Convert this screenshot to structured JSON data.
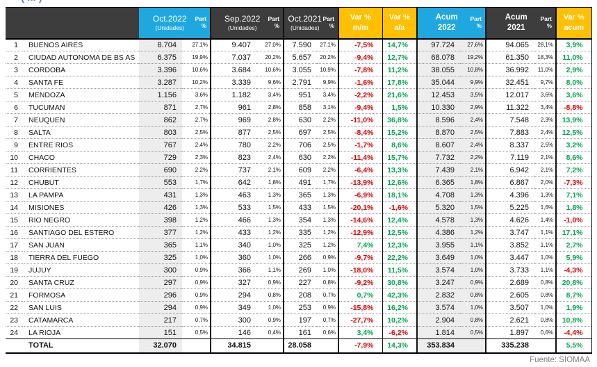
{
  "clipped_title": "( ... )",
  "source_note": "Fuente: SIOMAA",
  "colors": {
    "header_dark": "#3d3d3d",
    "header_cyan": "#1fa8e0",
    "header_amber": "#ffc000",
    "negative_red": "#e00000",
    "positive_green": "#00a651",
    "shaded_column_gray": "#ededed"
  },
  "header": {
    "oct2022": {
      "l1": "Oct.2022",
      "l2": "(Unidades)"
    },
    "sep2022": {
      "l1": "Sep.2022",
      "l2": "(Unidades)"
    },
    "oct2021": {
      "l1": "Oct.2021",
      "l2": "(Unidades)"
    },
    "part": {
      "l1": "Part",
      "l2": "%"
    },
    "var_mm": {
      "l1": "Var %",
      "l2": "m/m"
    },
    "var_aa": {
      "l1": "Var %",
      "l2": "a/a"
    },
    "acum2022": {
      "l1": "Acum",
      "l2": "2022"
    },
    "acum2021": {
      "l1": "Acum",
      "l2": "2021"
    },
    "var_acum": {
      "l1": "Var %",
      "l2": "acum"
    }
  },
  "chart_data": {
    "type": "table",
    "columns": [
      "#",
      "Provincia",
      "Oct.2022 (Unidades)",
      "Part %",
      "Sep.2022 (Unidades)",
      "Part %",
      "Oct.2021 (Unidades)",
      "Part %",
      "Var % m/m",
      "Var % a/a",
      "Acum 2022",
      "Part %",
      "Acum 2021",
      "Part %",
      "Var % acum"
    ],
    "rows": [
      [
        "1",
        "BUENOS AIRES",
        "8.704",
        "27,1%",
        "9.407",
        "27,0%",
        "7.590",
        "27,1%",
        "-7,5%",
        "14,7%",
        "97.724",
        "27,6%",
        "94.065",
        "28,1%",
        "3,9%"
      ],
      [
        "2",
        "CIUDAD AUTONOMA DE BS AS",
        "6.375",
        "19,9%",
        "7.037",
        "20,2%",
        "5.657",
        "20,2%",
        "-9,4%",
        "12,7%",
        "68.078",
        "19,2%",
        "61.350",
        "18,3%",
        "11,0%"
      ],
      [
        "3",
        "CORDOBA",
        "3.396",
        "10,6%",
        "3.684",
        "10,6%",
        "3.055",
        "10,9%",
        "-7,8%",
        "11,2%",
        "38.055",
        "10,8%",
        "36.992",
        "11,0%",
        "2,9%"
      ],
      [
        "4",
        "SANTA FE",
        "3.287",
        "10,2%",
        "3.339",
        "9,6%",
        "2.791",
        "9,9%",
        "-1,6%",
        "17,8%",
        "35.044",
        "9,9%",
        "32.451",
        "9,7%",
        "8,0%"
      ],
      [
        "5",
        "MENDOZA",
        "1.156",
        "3,6%",
        "1.182",
        "3,4%",
        "951",
        "3,4%",
        "-2,2%",
        "21,6%",
        "12.453",
        "3,5%",
        "12.017",
        "3,6%",
        "3,6%"
      ],
      [
        "6",
        "TUCUMAN",
        "871",
        "2,7%",
        "961",
        "2,8%",
        "858",
        "3,1%",
        "-9,4%",
        "1,5%",
        "10.330",
        "2,9%",
        "11.322",
        "3,4%",
        "-8,8%"
      ],
      [
        "7",
        "NEUQUEN",
        "862",
        "2,7%",
        "969",
        "2,8%",
        "630",
        "2,2%",
        "-11,0%",
        "36,8%",
        "8.596",
        "2,4%",
        "7.548",
        "2,3%",
        "13,9%"
      ],
      [
        "8",
        "SALTA",
        "803",
        "2,5%",
        "877",
        "2,5%",
        "697",
        "2,5%",
        "-8,4%",
        "15,2%",
        "8.870",
        "2,5%",
        "7.883",
        "2,4%",
        "12,5%"
      ],
      [
        "9",
        "ENTRE RIOS",
        "767",
        "2,4%",
        "780",
        "2,2%",
        "706",
        "2,5%",
        "-1,7%",
        "8,6%",
        "8.607",
        "2,4%",
        "8.337",
        "2,5%",
        "3,2%"
      ],
      [
        "10",
        "CHACO",
        "729",
        "2,3%",
        "823",
        "2,4%",
        "630",
        "2,2%",
        "-11,4%",
        "15,7%",
        "7.732",
        "2,2%",
        "7.119",
        "2,1%",
        "8,6%"
      ],
      [
        "11",
        "CORRIENTES",
        "690",
        "2,2%",
        "737",
        "2,1%",
        "609",
        "2,2%",
        "-6,4%",
        "13,3%",
        "7.439",
        "2,1%",
        "6.942",
        "2,1%",
        "7,2%"
      ],
      [
        "12",
        "CHUBUT",
        "553",
        "1,7%",
        "642",
        "1,8%",
        "491",
        "1,7%",
        "-13,9%",
        "12,6%",
        "6.365",
        "1,8%",
        "6.867",
        "2,0%",
        "-7,3%"
      ],
      [
        "13",
        "LA PAMPA",
        "431",
        "1,3%",
        "463",
        "1,3%",
        "365",
        "1,3%",
        "-6,9%",
        "18,1%",
        "4.708",
        "1,3%",
        "4.396",
        "1,3%",
        "7,1%"
      ],
      [
        "14",
        "MISIONES",
        "426",
        "1,3%",
        "533",
        "1,5%",
        "433",
        "1,5%",
        "-20,1%",
        "-1,6%",
        "5.320",
        "1,5%",
        "5.225",
        "1,6%",
        "1,8%"
      ],
      [
        "15",
        "RIO NEGRO",
        "398",
        "1,2%",
        "466",
        "1,3%",
        "354",
        "1,3%",
        "-14,6%",
        "12,4%",
        "4.578",
        "1,3%",
        "4.626",
        "1,4%",
        "-1,0%"
      ],
      [
        "16",
        "SANTIAGO DEL ESTERO",
        "377",
        "1,2%",
        "433",
        "1,2%",
        "335",
        "1,2%",
        "-12,9%",
        "12,5%",
        "4.386",
        "1,2%",
        "3.747",
        "1,1%",
        "17,1%"
      ],
      [
        "17",
        "SAN JUAN",
        "365",
        "1,1%",
        "340",
        "1,0%",
        "325",
        "1,2%",
        "7,4%",
        "12,3%",
        "3.955",
        "1,1%",
        "3.852",
        "1,1%",
        "2,7%"
      ],
      [
        "18",
        "TIERRA DEL FUEGO",
        "325",
        "1,0%",
        "360",
        "1,0%",
        "266",
        "0,9%",
        "-9,7%",
        "22,2%",
        "3.649",
        "1,0%",
        "3.447",
        "1,0%",
        "5,9%"
      ],
      [
        "19",
        "JUJUY",
        "300",
        "0,9%",
        "366",
        "1,1%",
        "269",
        "1,0%",
        "-18,0%",
        "11,5%",
        "3.574",
        "1,0%",
        "3.733",
        "1,1%",
        "-4,3%"
      ],
      [
        "20",
        "SANTA CRUZ",
        "297",
        "0,9%",
        "327",
        "0,9%",
        "227",
        "0,8%",
        "-9,2%",
        "30,8%",
        "3.247",
        "0,9%",
        "2.689",
        "0,8%",
        "20,8%"
      ],
      [
        "21",
        "FORMOSA",
        "296",
        "0,9%",
        "294",
        "0,8%",
        "208",
        "0,7%",
        "0,7%",
        "42,3%",
        "2.832",
        "0,8%",
        "2.605",
        "0,8%",
        "8,7%"
      ],
      [
        "22",
        "SAN LUIS",
        "294",
        "0,9%",
        "349",
        "1,0%",
        "253",
        "0,9%",
        "-15,8%",
        "16,2%",
        "3.574",
        "1,0%",
        "3.507",
        "1,0%",
        "1,9%"
      ],
      [
        "23",
        "CATAMARCA",
        "217",
        "0,7%",
        "300",
        "0,9%",
        "197",
        "0,7%",
        "-27,7%",
        "10,2%",
        "2.904",
        "0,8%",
        "2.621",
        "0,8%",
        "10,8%"
      ],
      [
        "24",
        "LA RIOJA",
        "151",
        "0,5%",
        "146",
        "0,4%",
        "161",
        "0,6%",
        "3,4%",
        "-6,2%",
        "1.814",
        "0,5%",
        "1.897",
        "0,6%",
        "-4,4%"
      ]
    ],
    "total": [
      "",
      "TOTAL",
      "32.070",
      "",
      "34.815",
      "",
      "28.058",
      "",
      "-7,9%",
      "14,3%",
      "353.834",
      "",
      "335.238",
      "",
      "5,5%"
    ]
  }
}
